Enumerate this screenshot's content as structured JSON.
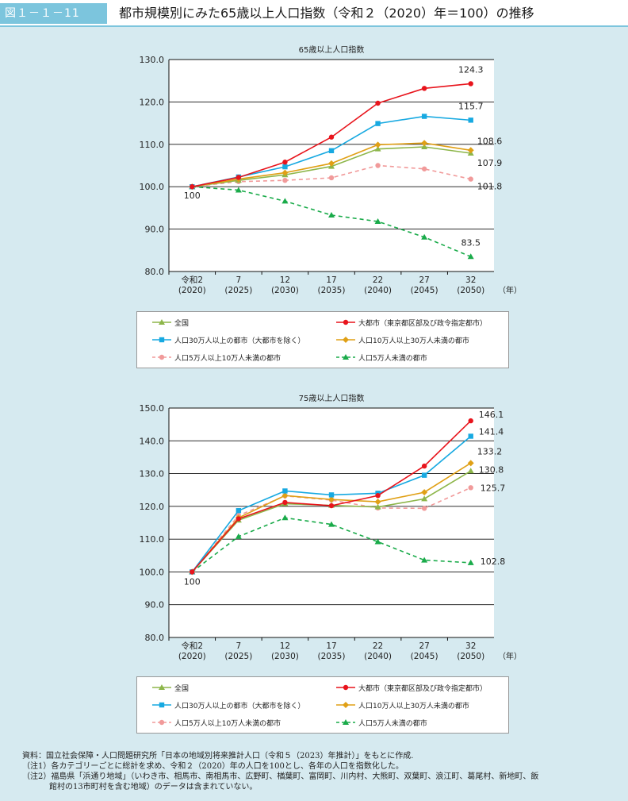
{
  "header": {
    "figure_id": "図１－１－11",
    "title": "都市規模別にみた65歳以上人口指数（令和２（2020）年＝100）の推移"
  },
  "colors": {
    "all": "#8db64a",
    "large": "#e8141c",
    "pop300k": "#17a9e1",
    "pop100k": "#e0a016",
    "pop50k": "#f19a9a",
    "small": "#1aab4a"
  },
  "year_unit": "（年）",
  "legend": [
    {
      "key": "all",
      "label": "全国"
    },
    {
      "key": "large",
      "label": "大都市（東京都区部及び政令指定都市）"
    },
    {
      "key": "pop300k",
      "label": "人口30万人以上の都市（大都市を除く）"
    },
    {
      "key": "pop100k",
      "label": "人口10万人以上30万人未満の都市"
    },
    {
      "key": "pop50k",
      "label": "人口5万人以上10万人未満の都市"
    },
    {
      "key": "small",
      "label": "人口5万人未満の都市"
    }
  ],
  "chart_data": [
    {
      "type": "line",
      "title": "65歳以上人口指数",
      "categories": [
        "令和2",
        "7",
        "12",
        "17",
        "22",
        "27",
        "32"
      ],
      "category_years": [
        "(2020)",
        "(2025)",
        "(2030)",
        "(2035)",
        "(2040)",
        "(2045)",
        "(2050)"
      ],
      "ylim": [
        80,
        130
      ],
      "yticks": [
        "80.0",
        "90.0",
        "100.0",
        "110.0",
        "120.0",
        "130.0"
      ],
      "grid": true,
      "series": [
        {
          "key": "all",
          "name": "全国",
          "values": [
            100,
            101.5,
            102.8,
            104.8,
            108.9,
            109.4,
            107.9
          ]
        },
        {
          "key": "large",
          "name": "大都市（東京都区部及び政令指定都市）",
          "values": [
            100,
            102.2,
            105.8,
            111.7,
            119.7,
            123.2,
            124.3
          ]
        },
        {
          "key": "pop300k",
          "name": "人口30万人以上の都市（大都市を除く）",
          "values": [
            100,
            102.3,
            104.7,
            108.5,
            114.9,
            116.6,
            115.7
          ]
        },
        {
          "key": "pop100k",
          "name": "人口10万人以上30万人未満の都市",
          "values": [
            100,
            101.8,
            103.3,
            105.5,
            109.9,
            110.3,
            108.6
          ]
        },
        {
          "key": "pop50k",
          "name": "人口5万人以上10万人未満の都市",
          "values": [
            100,
            101.2,
            101.5,
            102.1,
            105.0,
            104.2,
            101.8
          ]
        },
        {
          "key": "small",
          "name": "人口5万人未満の都市",
          "values": [
            100,
            99.2,
            96.6,
            93.3,
            91.8,
            88.1,
            83.5
          ]
        }
      ],
      "labels": [
        {
          "text": "124.3",
          "series": "large"
        },
        {
          "text": "115.7",
          "series": "pop300k"
        },
        {
          "text": "108.6",
          "series": "pop100k"
        },
        {
          "text": "107.9",
          "series": "all"
        },
        {
          "text": "101.8",
          "series": "pop50k"
        },
        {
          "text": "83.5",
          "series": "small"
        },
        {
          "text": "100",
          "series": "base"
        }
      ]
    },
    {
      "type": "line",
      "title": "75歳以上人口指数",
      "categories": [
        "令和2",
        "7",
        "12",
        "17",
        "22",
        "27",
        "32"
      ],
      "category_years": [
        "(2020)",
        "(2025)",
        "(2030)",
        "(2035)",
        "(2040)",
        "(2045)",
        "(2050)"
      ],
      "ylim": [
        80,
        150
      ],
      "yticks": [
        "80.0",
        "90.0",
        "100.0",
        "110.0",
        "120.0",
        "130.0",
        "140.0",
        "150.0"
      ],
      "grid": true,
      "series": [
        {
          "key": "all",
          "name": "全国",
          "values": [
            100,
            115.8,
            120.8,
            120.3,
            119.8,
            122.3,
            130.8
          ]
        },
        {
          "key": "large",
          "name": "大都市（東京都区部及び政令指定都市）",
          "values": [
            100,
            116.2,
            121.2,
            120.2,
            123.3,
            132.3,
            146.1
          ]
        },
        {
          "key": "pop300k",
          "name": "人口30万人以上の都市（大都市を除く）",
          "values": [
            100,
            118.7,
            124.7,
            123.5,
            124.0,
            129.5,
            141.4
          ]
        },
        {
          "key": "pop100k",
          "name": "人口10万人以上30万人未満の都市",
          "values": [
            100,
            116.5,
            123.3,
            122.1,
            121.4,
            124.3,
            133.2
          ]
        },
        {
          "key": "pop50k",
          "name": "人口5万人以上10万人未満の都市",
          "values": [
            100,
            117.2,
            123.2,
            121.9,
            119.5,
            119.4,
            125.7
          ]
        },
        {
          "key": "small",
          "name": "人口5万人未満の都市",
          "values": [
            100,
            110.8,
            116.5,
            114.5,
            109.2,
            103.6,
            102.8
          ]
        }
      ],
      "labels": [
        {
          "text": "146.1",
          "series": "large"
        },
        {
          "text": "141.4",
          "series": "pop300k"
        },
        {
          "text": "133.2",
          "series": "pop100k"
        },
        {
          "text": "130.8",
          "series": "all"
        },
        {
          "text": "125.7",
          "series": "pop50k"
        },
        {
          "text": "102.8",
          "series": "small"
        },
        {
          "text": "100",
          "series": "base"
        }
      ]
    }
  ],
  "notes": [
    "資料：国立社会保障・人口問題研究所「日本の地域別将来推計人口（令和５（2023）年推計）」をもとに作成.",
    "（注1）各カテゴリーごとに総計を求め、令和２（2020）年の人口を100とし、各年の人口を指数化した。",
    "（注2）福島県「浜通り地域」（いわき市、相馬市、南相馬市、広野町、楢葉町、富岡町、川内村、大熊町、双葉町、浪江町、葛尾村、新地町、飯",
    "館村の13市町村を含む地域）のデータは含まれていない。"
  ]
}
